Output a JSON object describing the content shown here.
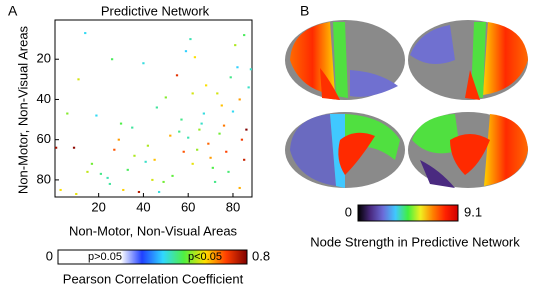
{
  "panels": [
    "A",
    "B"
  ],
  "chart_data": [
    {
      "type": "heatmap",
      "title": "Predictive Network",
      "xlabel": "Non-Motor, Non-Visual Areas",
      "ylabel": "Non-Motor, Non-Visual Areas",
      "xlim": [
        0.5,
        88.5
      ],
      "ylim": [
        0.5,
        88.5
      ],
      "xticks": [
        20,
        40,
        60,
        80
      ],
      "yticks": [
        20,
        40,
        60,
        80
      ],
      "x": [
        3,
        9,
        14,
        17,
        21,
        24,
        27,
        29,
        33,
        36,
        38,
        41,
        44,
        46,
        49,
        52,
        55,
        57,
        59,
        61,
        63,
        65,
        67,
        69,
        71,
        73,
        75,
        77,
        79,
        81,
        83,
        85,
        86,
        87,
        6,
        11,
        19,
        26,
        31,
        35,
        42,
        47,
        53,
        58,
        62,
        66,
        70,
        74,
        78,
        82,
        84,
        60,
        64,
        68,
        72,
        76,
        80,
        15,
        30,
        45,
        1,
        10,
        25,
        40,
        50,
        56,
        83,
        88,
        85,
        62
      ],
      "y": [
        85,
        64,
        7,
        72,
        77,
        79,
        65,
        60,
        75,
        68,
        86,
        71,
        80,
        44,
        81,
        58,
        28,
        50,
        16,
        10,
        19,
        55,
        47,
        62,
        74,
        37,
        43,
        66,
        29,
        13,
        40,
        70,
        55,
        34,
        47,
        30,
        48,
        20,
        85,
        54,
        63,
        86,
        78,
        66,
        72,
        52,
        69,
        57,
        76,
        24,
        60,
        59,
        65,
        33,
        81,
        53,
        46,
        76,
        52,
        70,
        64,
        87,
        82,
        22,
        39,
        56,
        84,
        25,
        8,
        37
      ],
      "values": [
        0.62,
        0.79,
        0.45,
        0.55,
        0.5,
        0.48,
        0.7,
        0.66,
        0.52,
        0.58,
        0.76,
        0.47,
        0.6,
        0.49,
        0.55,
        0.65,
        0.73,
        0.5,
        0.44,
        0.48,
        0.62,
        0.57,
        0.46,
        0.69,
        0.53,
        0.6,
        0.64,
        0.71,
        0.5,
        0.58,
        0.66,
        0.75,
        0.8,
        0.47,
        0.56,
        0.6,
        0.45,
        0.52,
        0.63,
        0.49,
        0.58,
        0.46,
        0.54,
        0.7,
        0.61,
        0.47,
        0.66,
        0.55,
        0.51,
        0.44,
        0.72,
        0.48,
        0.57,
        0.62,
        0.5,
        0.68,
        0.45,
        0.59,
        0.53,
        0.64,
        0.78,
        0.61,
        0.49,
        0.46,
        0.56,
        0.5,
        0.65,
        0.47,
        0.52,
        0.6
      ],
      "clim": [
        0,
        0.8
      ],
      "colorbar_ticks": [
        0,
        0.8
      ],
      "colormap": [
        "#ffffff",
        "#ffffff",
        "#ffffff",
        "#ffffff",
        "#2040ff",
        "#30d8ff",
        "#50f040",
        "#ffe000",
        "#ff4000",
        "#800000"
      ],
      "threshold_labels": [
        "p>0.05",
        "p<0.05"
      ],
      "colorbar_label": "Pearson Correlation Coefficient"
    },
    {
      "type": "brain-map",
      "clim": [
        0,
        9.1
      ],
      "colorbar_ticks": [
        0,
        9.1
      ],
      "colormap": [
        "#000000",
        "#4a2a80",
        "#6b6bd8",
        "#40c8ff",
        "#40f040",
        "#f0f020",
        "#ff8000",
        "#ff2000",
        "#d00000"
      ],
      "colorbar_label": "Node Strength in Predictive Network"
    }
  ]
}
